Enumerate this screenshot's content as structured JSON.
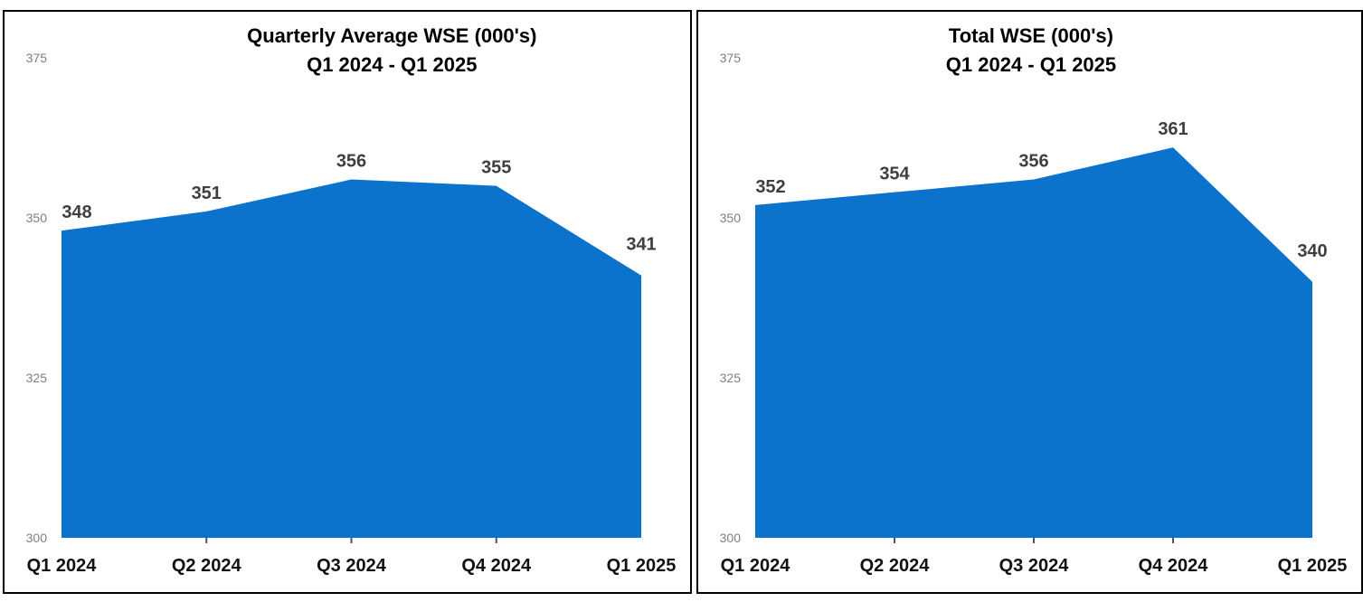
{
  "page": {
    "background_color": "#FFFFFF",
    "panel_border_color": "#000000"
  },
  "chart_data": [
    {
      "type": "area",
      "title_line1": "Quarterly Average WSE (000's)",
      "title_line2": "Q1 2024 - Q1 2025",
      "categories": [
        "Q1 2024",
        "Q2 2024",
        "Q3 2024",
        "Q4 2024",
        "Q1 2025"
      ],
      "values": [
        348,
        351,
        356,
        355,
        341
      ],
      "ylim": [
        300,
        375
      ],
      "yticks": [
        375,
        350,
        325,
        300
      ],
      "grid": false,
      "legend": "none",
      "data_labels": true,
      "area_color": "#0B73CB",
      "data_label_color": "#3F3F3F",
      "ytick_label_color": "#7F7F7F",
      "category_label_color": "#111111",
      "title_color": "#000000",
      "axis_tick_color": "#44546A",
      "title_x_pct": 56.5
    },
    {
      "type": "area",
      "title_line1": "Total WSE (000's)",
      "title_line2": "Q1 2024 - Q1 2025",
      "categories": [
        "Q1 2024",
        "Q2 2024",
        "Q3 2024",
        "Q4 2024",
        "Q1 2025"
      ],
      "values": [
        352,
        354,
        356,
        361,
        340
      ],
      "ylim": [
        300,
        375
      ],
      "yticks": [
        375,
        350,
        325,
        300
      ],
      "grid": false,
      "legend": "none",
      "data_labels": true,
      "area_color": "#0B73CB",
      "data_label_color": "#3F3F3F",
      "ytick_label_color": "#7F7F7F",
      "category_label_color": "#111111",
      "title_color": "#000000",
      "axis_tick_color": "#44546A",
      "title_x_pct": 50.2
    }
  ]
}
